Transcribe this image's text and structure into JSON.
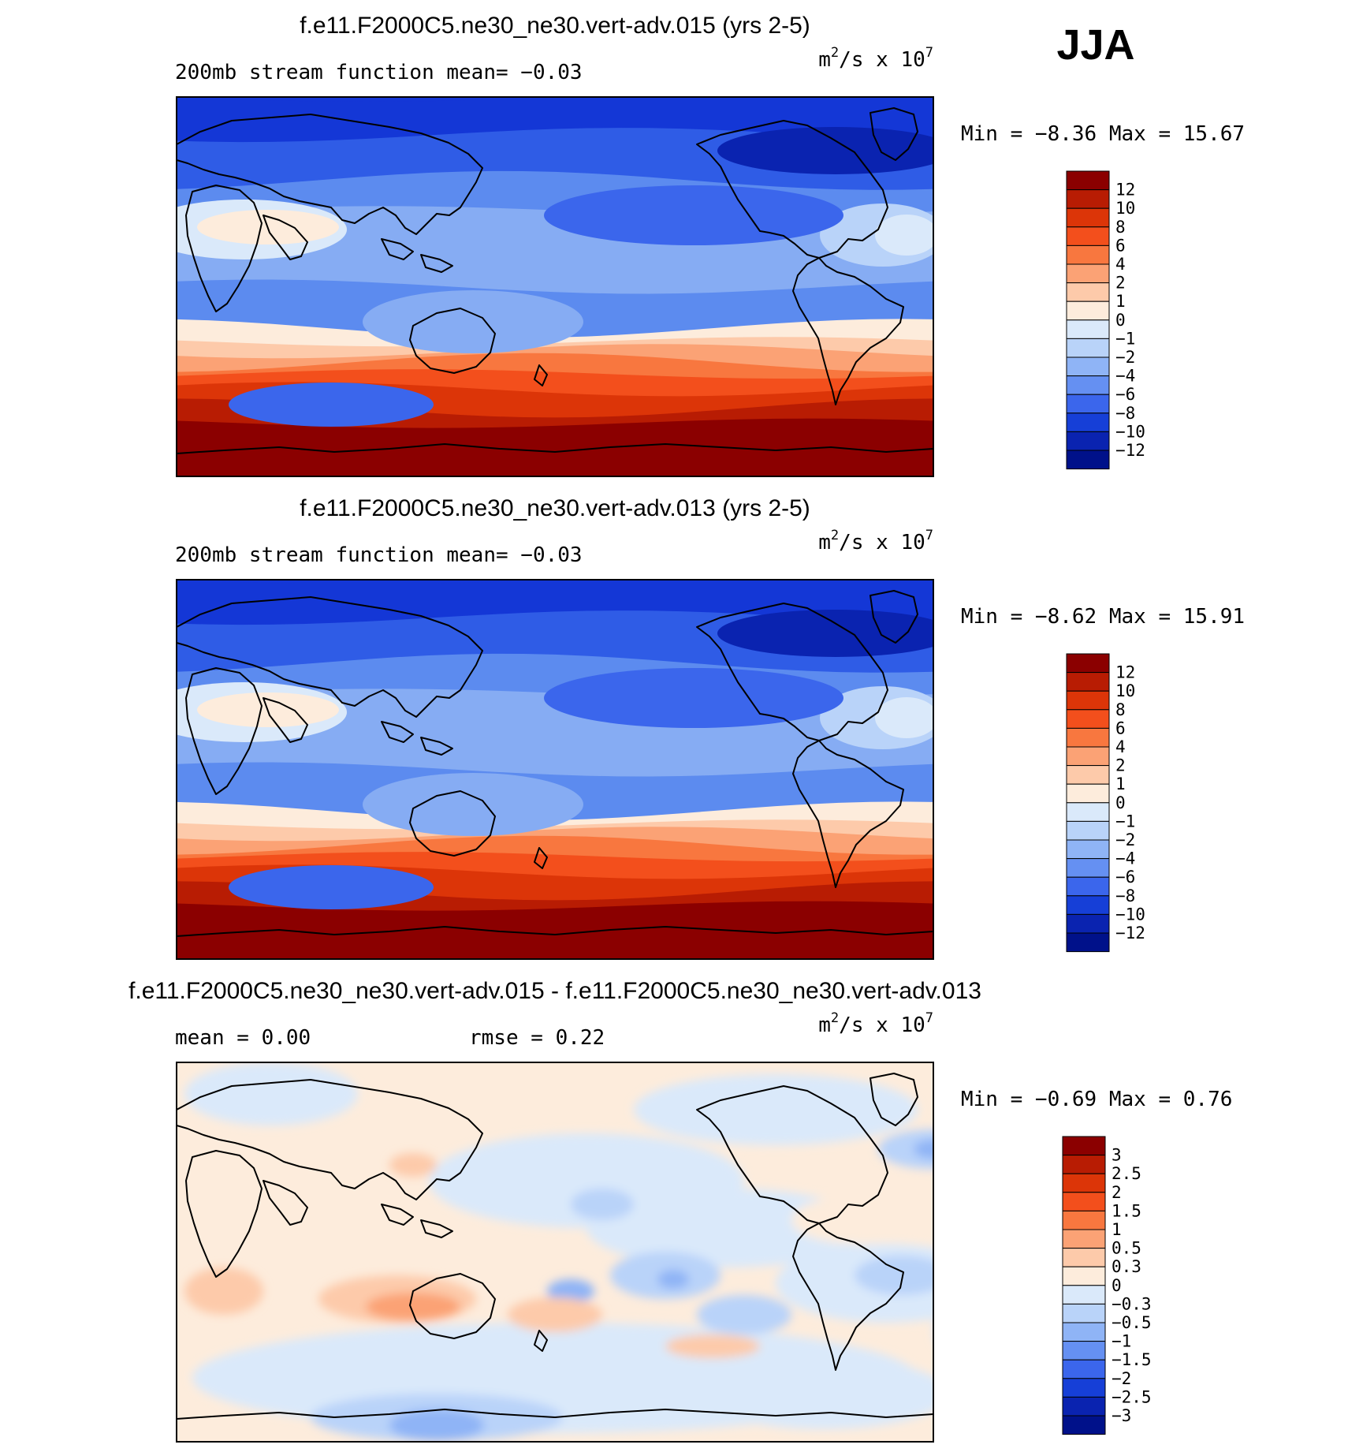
{
  "season": "JJA",
  "panels": [
    {
      "id": "p1",
      "title": "f.e11.F2000C5.ne30_ne30.vert-adv.015 (yrs 2-5)",
      "left_label": "200mb stream function  mean=  −0.03",
      "units_base": "m",
      "units_mid": "/s x 10",
      "units_sup1": "2",
      "units_sup2": "7",
      "minmax": "Min =  −8.36 Max =  15.67",
      "legend_labels": [
        "12",
        "10",
        "8",
        "6",
        "4",
        "2",
        "1",
        "0",
        "−1",
        "−2",
        "−4",
        "−6",
        "−8",
        "−10",
        "−12"
      ],
      "legend_colors": [
        "#8b0000",
        "#b81c03",
        "#dc3508",
        "#f34f1c",
        "#f8773f",
        "#fba275",
        "#fdcaaa",
        "#fdecdc",
        "#dae9fa",
        "#b9d3f9",
        "#8fb4f6",
        "#6590f2",
        "#3b66ec",
        "#163fd7",
        "#0a23b0",
        "#00118a"
      ],
      "band_colors": [
        "#1437d6",
        "#2f5ce6",
        "#5c8bef",
        "#86acf3",
        "#5c8bef",
        "#fdecdc",
        "#fdcaaa",
        "#fba275",
        "#f8773f",
        "#f34f1c",
        "#dc3508",
        "#b81c03",
        "#8b0000"
      ]
    },
    {
      "id": "p2",
      "title": "f.e11.F2000C5.ne30_ne30.vert-adv.013 (yrs 2-5)",
      "left_label": "200mb stream function  mean=  −0.03",
      "units_base": "m",
      "units_mid": "/s x 10",
      "units_sup1": "2",
      "units_sup2": "7",
      "minmax": "Min =  −8.62 Max =  15.91",
      "legend_labels": [
        "12",
        "10",
        "8",
        "6",
        "4",
        "2",
        "1",
        "0",
        "−1",
        "−2",
        "−4",
        "−6",
        "−8",
        "−10",
        "−12"
      ],
      "legend_colors": [
        "#8b0000",
        "#b81c03",
        "#dc3508",
        "#f34f1c",
        "#f8773f",
        "#fba275",
        "#fdcaaa",
        "#fdecdc",
        "#dae9fa",
        "#b9d3f9",
        "#8fb4f6",
        "#6590f2",
        "#3b66ec",
        "#163fd7",
        "#0a23b0",
        "#00118a"
      ],
      "band_colors": [
        "#1437d6",
        "#2f5ce6",
        "#5c8bef",
        "#86acf3",
        "#5c8bef",
        "#fdecdc",
        "#fdcaaa",
        "#fba275",
        "#f8773f",
        "#f34f1c",
        "#dc3508",
        "#b81c03",
        "#8b0000"
      ]
    },
    {
      "id": "p3",
      "title": "f.e11.F2000C5.ne30_ne30.vert-adv.015 - f.e11.F2000C5.ne30_ne30.vert-adv.013",
      "left_label": "mean =   0.00",
      "left_label2": "rmse =   0.22",
      "units_base": "m",
      "units_mid": "/s x 10",
      "units_sup1": "2",
      "units_sup2": "7",
      "minmax": "Min =  −0.69 Max =   0.76",
      "legend_labels": [
        "3",
        "2.5",
        "2",
        "1.5",
        "1",
        "0.5",
        "0.3",
        "0",
        "−0.3",
        "−0.5",
        "−1",
        "−1.5",
        "−2",
        "−2.5",
        "−3"
      ],
      "legend_colors": [
        "#8b0000",
        "#b81c03",
        "#dc3508",
        "#f34f1c",
        "#f8773f",
        "#fba275",
        "#fdcaaa",
        "#fdecdc",
        "#dae9fa",
        "#b9d3f9",
        "#8fb4f6",
        "#6590f2",
        "#3b66ec",
        "#163fd7",
        "#0a23b0",
        "#00118a"
      ]
    }
  ]
}
